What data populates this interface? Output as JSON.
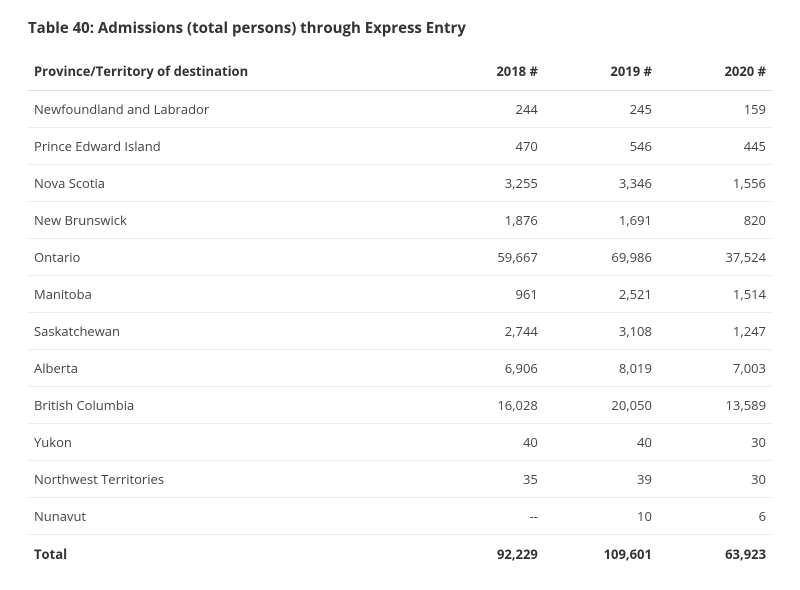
{
  "title": "Table 40: Admissions (total persons) through Express Entry",
  "columns": [
    "Province/Territory of destination",
    "2018 #",
    "2019 #",
    "2020 #"
  ],
  "rows": [
    [
      "Newfoundland and Labrador",
      "244",
      "245",
      "159"
    ],
    [
      "Prince Edward Island",
      "470",
      "546",
      "445"
    ],
    [
      "Nova Scotia",
      "3,255",
      "3,346",
      "1,556"
    ],
    [
      "New Brunswick",
      "1,876",
      "1,691",
      "820"
    ],
    [
      "Ontario",
      "59,667",
      "69,986",
      "37,524"
    ],
    [
      "Manitoba",
      "961",
      "2,521",
      "1,514"
    ],
    [
      "Saskatchewan",
      "2,744",
      "3,108",
      "1,247"
    ],
    [
      "Alberta",
      "6,906",
      "8,019",
      "7,003"
    ],
    [
      "British Columbia",
      "16,028",
      "20,050",
      "13,589"
    ],
    [
      "Yukon",
      "40",
      "40",
      "30"
    ],
    [
      "Northwest Territories",
      "35",
      "39",
      "30"
    ],
    [
      "Nunavut",
      "--",
      "10",
      "6"
    ]
  ],
  "total": [
    "Total",
    "92,229",
    "109,601",
    "63,923"
  ],
  "style": {
    "background_color": "#ffffff",
    "text_color": "#333333",
    "row_text_color": "#444444",
    "header_border_color": "#dddddd",
    "row_border_color": "#eeeeee",
    "title_fontsize": 15,
    "table_fontsize": 13,
    "column_widths_pct": [
      54,
      15.33,
      15.33,
      15.33
    ],
    "column_alignment": [
      "left",
      "right",
      "right",
      "right"
    ]
  }
}
